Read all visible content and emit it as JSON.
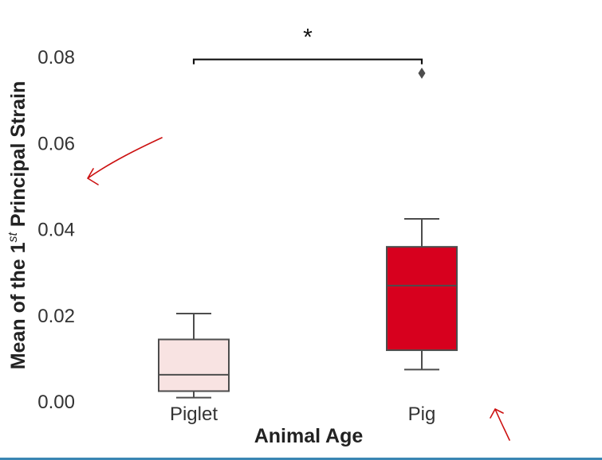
{
  "chart_data": {
    "type": "box",
    "title": "",
    "xlabel": "Animal Age",
    "ylabel": {
      "prefix": "Mean of the 1",
      "superscript": "st",
      "suffix": " Principal Strain"
    },
    "ylim": [
      0.0,
      0.08
    ],
    "yticks": [
      0.0,
      0.02,
      0.04,
      0.06,
      0.08
    ],
    "ytick_labels": [
      "0.00",
      "0.02",
      "0.04",
      "0.06",
      "0.08"
    ],
    "categories": [
      "Piglet",
      "Pig"
    ],
    "boxes": [
      {
        "category": "Piglet",
        "whisker_low": 0.001,
        "q1": 0.0025,
        "median": 0.0063,
        "q3": 0.0145,
        "whisker_high": 0.0205,
        "outliers": [],
        "color": "#f8e3e2"
      },
      {
        "category": "Pig",
        "whisker_low": 0.0075,
        "q1": 0.012,
        "median": 0.027,
        "q3": 0.036,
        "whisker_high": 0.0425,
        "outliers": [
          0.0763
        ],
        "color": "#d7001e"
      }
    ],
    "significance": {
      "label": "*",
      "between": [
        "Piglet",
        "Pig"
      ],
      "y": 0.0795
    },
    "grid": false,
    "legend": "none"
  },
  "colors": {
    "annotation_arrow": "#cc1111",
    "box_edge": "#4d4d4d"
  }
}
